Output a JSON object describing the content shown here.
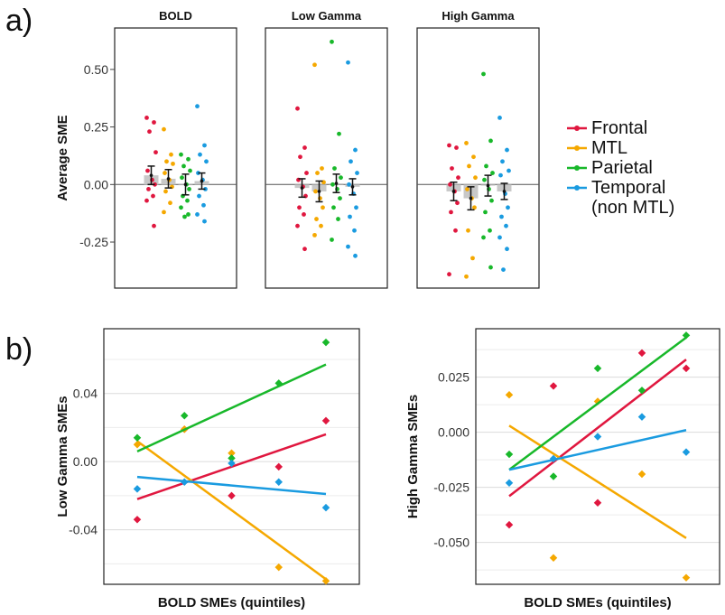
{
  "panel_labels": {
    "a": "a)",
    "b": "b)"
  },
  "colors": {
    "Frontal": "#e0173f",
    "MTL": "#f5a800",
    "Parietal": "#18b82a",
    "Temporal": "#1a9be0"
  },
  "legend": {
    "items": [
      {
        "key": "Frontal",
        "lines": [
          "Frontal"
        ]
      },
      {
        "key": "MTL",
        "lines": [
          "MTL"
        ]
      },
      {
        "key": "Parietal",
        "lines": [
          "Parietal"
        ]
      },
      {
        "key": "Temporal",
        "lines": [
          "Temporal",
          "(non MTL)"
        ]
      }
    ]
  },
  "chart_data": [
    {
      "type": "scatter",
      "panel": "a",
      "ylabel": "Average SME",
      "ylim": [
        -0.45,
        0.68
      ],
      "yticks": [
        -0.25,
        0.0,
        0.25,
        0.5
      ],
      "ytick_labels": [
        "-0.25",
        "0.00",
        "0.25",
        "0.50"
      ],
      "regions": [
        "Frontal",
        "MTL",
        "Parietal",
        "Temporal"
      ],
      "facets": [
        {
          "title": "BOLD",
          "mean": [
            0.04,
            0.025,
            0.0,
            0.015
          ],
          "err": [
            0.04,
            0.04,
            0.045,
            0.035
          ],
          "points": [
            [
              0.29,
              0.27,
              0.23,
              0.14,
              0.06,
              0.02,
              0.0,
              -0.02,
              -0.05,
              -0.07,
              -0.18
            ],
            [
              0.24,
              0.13,
              0.1,
              0.09,
              0.05,
              0.02,
              -0.01,
              -0.03,
              -0.08,
              -0.12
            ],
            [
              0.13,
              0.11,
              0.08,
              0.06,
              0.03,
              0.0,
              -0.02,
              -0.05,
              -0.07,
              -0.1,
              -0.13,
              -0.14
            ],
            [
              0.34,
              0.17,
              0.13,
              0.1,
              0.05,
              0.02,
              -0.02,
              -0.05,
              -0.09,
              -0.13,
              -0.16
            ]
          ]
        },
        {
          "title": "Low Gamma",
          "mean": [
            -0.015,
            -0.03,
            0.005,
            -0.01
          ],
          "err": [
            0.04,
            0.045,
            0.04,
            0.035
          ],
          "points": [
            [
              0.33,
              0.16,
              0.12,
              0.05,
              0.02,
              -0.01,
              -0.05,
              -0.1,
              -0.13,
              -0.18,
              -0.28
            ],
            [
              0.52,
              0.07,
              0.05,
              0.01,
              -0.03,
              -0.06,
              -0.1,
              -0.15,
              -0.18,
              -0.22
            ],
            [
              0.62,
              0.22,
              0.07,
              0.03,
              0.0,
              -0.02,
              -0.06,
              -0.1,
              -0.15,
              -0.24
            ],
            [
              0.53,
              0.15,
              0.1,
              0.05,
              0.0,
              -0.04,
              -0.1,
              -0.14,
              -0.2,
              -0.27,
              -0.31
            ]
          ]
        },
        {
          "title": "High Gamma",
          "mean": [
            -0.03,
            -0.06,
            -0.005,
            -0.03
          ],
          "err": [
            0.04,
            0.05,
            0.045,
            0.035
          ],
          "points": [
            [
              0.17,
              0.16,
              0.07,
              0.03,
              0.0,
              -0.03,
              -0.08,
              -0.12,
              -0.2,
              -0.39
            ],
            [
              0.18,
              0.12,
              0.08,
              0.03,
              -0.02,
              -0.06,
              -0.1,
              -0.2,
              -0.32,
              -0.4
            ],
            [
              0.48,
              0.19,
              0.08,
              0.05,
              0.02,
              -0.02,
              -0.07,
              -0.12,
              -0.2,
              -0.23,
              -0.36
            ],
            [
              0.29,
              0.15,
              0.1,
              0.06,
              0.04,
              -0.04,
              -0.1,
              -0.14,
              -0.18,
              -0.23,
              -0.28,
              -0.37
            ]
          ]
        }
      ]
    },
    {
      "type": "scatter",
      "panel": "b",
      "xlabel": "BOLD SMEs (quintiles)",
      "ylabel": "Low Gamma SMEs",
      "x": [
        1,
        2,
        3,
        4,
        5
      ],
      "ylim": [
        -0.072,
        0.078
      ],
      "yticks": [
        -0.04,
        0.0,
        0.04
      ],
      "ytick_labels": [
        "-0.04",
        "0.00",
        "0.04"
      ],
      "series": [
        {
          "name": "Frontal",
          "values": [
            -0.034,
            0.019,
            -0.02,
            -0.003,
            0.024
          ],
          "fit": [
            -0.022,
            0.016
          ]
        },
        {
          "name": "MTL",
          "values": [
            0.01,
            0.019,
            0.005,
            -0.062,
            -0.07
          ],
          "fit": [
            0.012,
            -0.069
          ]
        },
        {
          "name": "Parietal",
          "values": [
            0.014,
            0.027,
            0.002,
            0.046,
            0.07
          ],
          "fit": [
            0.006,
            0.057
          ]
        },
        {
          "name": "Temporal",
          "values": [
            -0.016,
            -0.012,
            -0.001,
            -0.012,
            -0.027
          ],
          "fit": [
            -0.009,
            -0.019
          ]
        }
      ]
    },
    {
      "type": "scatter",
      "panel": "b",
      "xlabel": "BOLD SMEs (quintiles)",
      "ylabel": "High Gamma SMEs",
      "x": [
        1,
        2,
        3,
        4,
        5
      ],
      "ylim": [
        -0.069,
        0.047
      ],
      "yticks": [
        -0.05,
        -0.025,
        0.0,
        0.025
      ],
      "ytick_labels": [
        "-0.050",
        "-0.025",
        "0.000",
        "0.025"
      ],
      "series": [
        {
          "name": "Frontal",
          "values": [
            -0.042,
            0.021,
            -0.032,
            0.036,
            0.029
          ],
          "fit": [
            -0.029,
            0.033
          ]
        },
        {
          "name": "MTL",
          "values": [
            0.017,
            -0.057,
            0.014,
            -0.019,
            -0.066
          ],
          "fit": [
            0.003,
            -0.048
          ]
        },
        {
          "name": "Parietal",
          "values": [
            -0.01,
            -0.02,
            0.029,
            0.019,
            0.044
          ],
          "fit": [
            -0.017,
            0.043
          ]
        },
        {
          "name": "Temporal",
          "values": [
            -0.023,
            -0.012,
            -0.002,
            0.007,
            -0.009
          ],
          "fit": [
            -0.017,
            0.001
          ]
        }
      ]
    }
  ]
}
